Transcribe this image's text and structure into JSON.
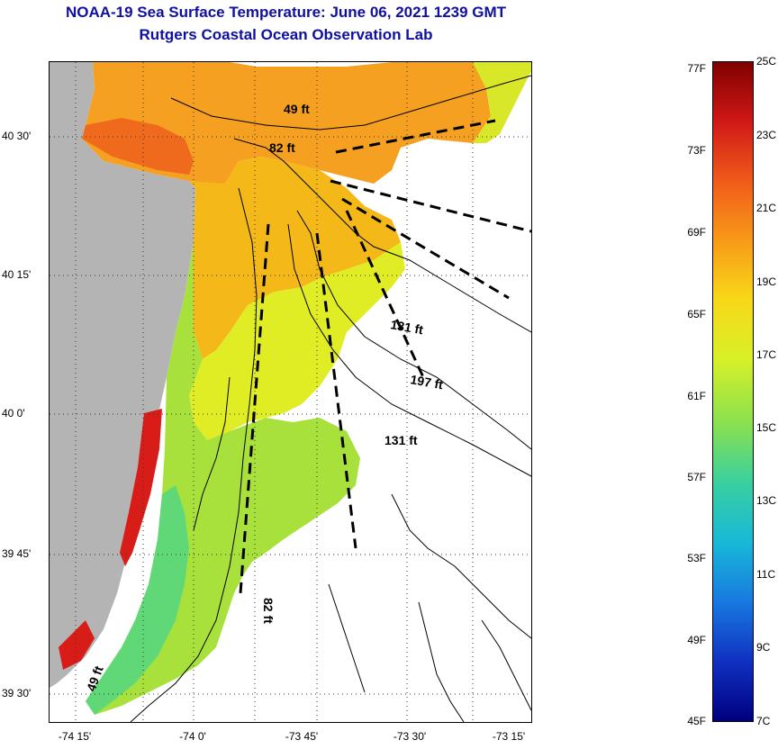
{
  "header": {
    "title_line1": "NOAA-19 Sea Surface Temperature:  June 06, 2021 1239 GMT",
    "title_line2": "Rutgers Coastal Ocean Observation Lab"
  },
  "map": {
    "latitude_labels": [
      "40 30'",
      "40 15'",
      "40 0'",
      "39 45'",
      "39 30'"
    ],
    "longitude_labels": [
      "-74 15'",
      "-74 0'",
      "-73 45'",
      "-73 30'",
      "-73 15'"
    ],
    "depth_labels": [
      "49 ft",
      "82 ft",
      "131 ft",
      "197 ft",
      "131 ft",
      "82 ft",
      "49 ft"
    ]
  },
  "colorbar": {
    "fahrenheit_labels": [
      "77F",
      "73F",
      "69F",
      "65F",
      "61F",
      "57F",
      "53F",
      "49F",
      "45F"
    ],
    "celsius_labels": [
      "25C",
      "23C",
      "21C",
      "19C",
      "17C",
      "15C",
      "13C",
      "11C",
      "9C",
      "7C"
    ],
    "colors": [
      "#800000",
      "#d01818",
      "#f05a1a",
      "#f89a18",
      "#f8d818",
      "#d8f028",
      "#88e050",
      "#38d0a0",
      "#18b8d8",
      "#1878e0",
      "#1030c0",
      "#000080"
    ]
  },
  "land_color": "#b4b4b4"
}
